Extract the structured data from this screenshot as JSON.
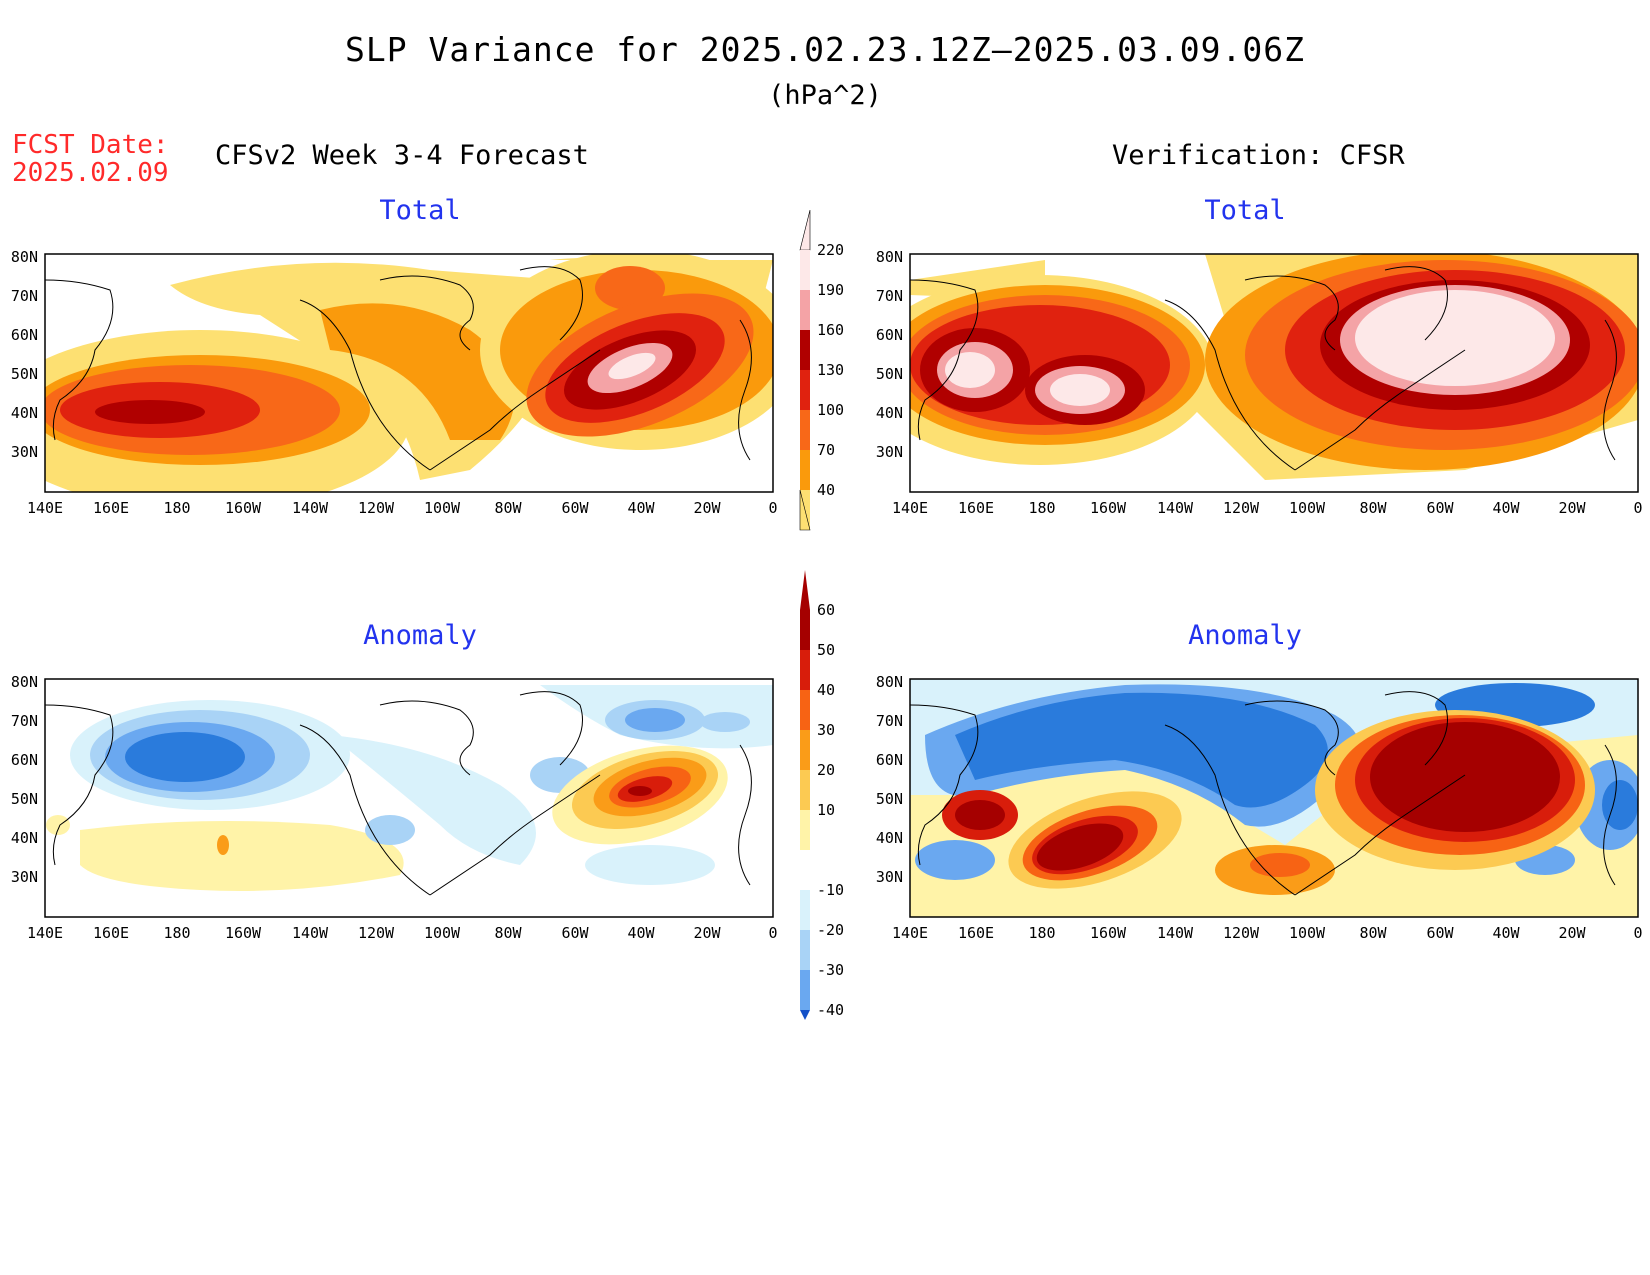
{
  "title": "SLP Variance for 2025.02.23.12Z–2025.03.09.06Z",
  "units": "(hPa^2)",
  "fcst_date_label": "FCST Date:",
  "fcst_date_value": "2025.02.09",
  "left_header": "CFSv2 Week 3-4 Forecast",
  "right_header": "Verification: CFSR",
  "panels": {
    "fcst_total": {
      "subtitle": "Total"
    },
    "verif_total": {
      "subtitle": "Total"
    },
    "fcst_anom": {
      "subtitle": "Anomaly"
    },
    "verif_anom": {
      "subtitle": "Anomaly"
    }
  },
  "lat_ticks": [
    "80N",
    "70N",
    "60N",
    "50N",
    "40N",
    "30N"
  ],
  "lon_ticks": [
    "140E",
    "160E",
    "180",
    "160W",
    "140W",
    "120W",
    "100W",
    "80W",
    "60W",
    "40W",
    "20W",
    "0"
  ],
  "total_colorbar": {
    "labels": [
      "220",
      "190",
      "160",
      "130",
      "100",
      "70",
      "40"
    ],
    "colors": [
      "#fde8e8",
      "#f4a3a6",
      "#b00000",
      "#e0220f",
      "#f86818",
      "#fa9a0c",
      "#fde072"
    ]
  },
  "anomaly_colorbar": {
    "labels": [
      "60",
      "50",
      "40",
      "30",
      "20",
      "10",
      "-10",
      "-20",
      "-30",
      "-40"
    ],
    "colors": [
      "#a50000",
      "#d81d0b",
      "#f76314",
      "#fa9c18",
      "#fcca52",
      "#fff3a8",
      "#ffffff",
      "#d9f2fb",
      "#a9d3f6",
      "#6aa8f0",
      "#2a7bdc",
      "#1250c8"
    ]
  }
}
